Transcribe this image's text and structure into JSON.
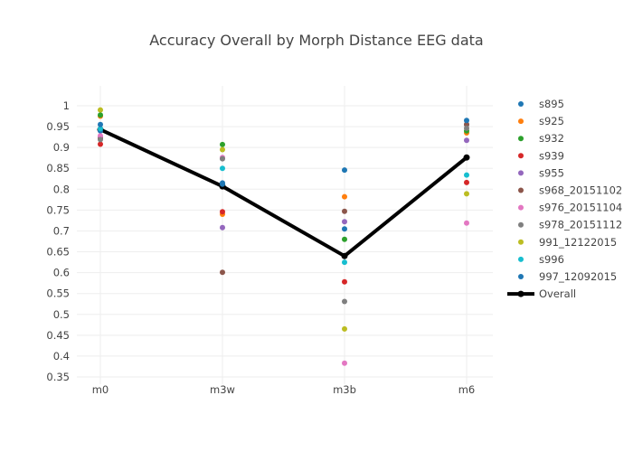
{
  "chart_data": {
    "type": "scatter",
    "title": "Accuracy Overall by Morph Distance EEG data",
    "xlabel": "",
    "ylabel": "",
    "categories": [
      "m0",
      "m3w",
      "m3b",
      "m6"
    ],
    "ylim": [
      0.35,
      1.02
    ],
    "yticks": [
      "0.35",
      "0.4",
      "0.45",
      "0.5",
      "0.55",
      "0.6",
      "0.65",
      "0.7",
      "0.75",
      "0.8",
      "0.85",
      "0.9",
      "0.95",
      "1"
    ],
    "grid": true,
    "legend_position": "right",
    "series": [
      {
        "name": "s895",
        "color": "#1f77b4",
        "values": [
          0.94,
          0.815,
          0.705,
          0.955
        ]
      },
      {
        "name": "s925",
        "color": "#ff7f0e",
        "values": [
          0.975,
          0.74,
          0.782,
          0.935
        ]
      },
      {
        "name": "s932",
        "color": "#2ca02c",
        "values": [
          0.978,
          0.907,
          0.68,
          0.94
        ]
      },
      {
        "name": "s939",
        "color": "#d62728",
        "values": [
          0.908,
          0.746,
          0.578,
          0.816
        ]
      },
      {
        "name": "s955",
        "color": "#9467bd",
        "values": [
          0.925,
          0.708,
          0.722,
          0.917
        ]
      },
      {
        "name": "s968_20151102",
        "color": "#8c564b",
        "values": [
          0.922,
          0.601,
          0.747,
          0.955
        ]
      },
      {
        "name": "s976_20151104",
        "color": "#e377c2",
        "values": [
          0.928,
          0.876,
          0.383,
          0.719
        ]
      },
      {
        "name": "s978_20151112",
        "color": "#7f7f7f",
        "values": [
          0.919,
          0.873,
          0.531,
          0.946
        ]
      },
      {
        "name": "991_12122015",
        "color": "#bcbd22",
        "values": [
          0.99,
          0.895,
          0.465,
          0.789
        ]
      },
      {
        "name": "s996",
        "color": "#17becf",
        "values": [
          0.945,
          0.85,
          0.625,
          0.834
        ]
      },
      {
        "name": "997_12092015",
        "color": "#1f77b4",
        "values": [
          0.955,
          0.812,
          0.846,
          0.965
        ]
      }
    ],
    "overall": {
      "name": "Overall",
      "color": "#000000",
      "values": [
        0.943,
        0.807,
        0.64,
        0.876
      ]
    }
  }
}
